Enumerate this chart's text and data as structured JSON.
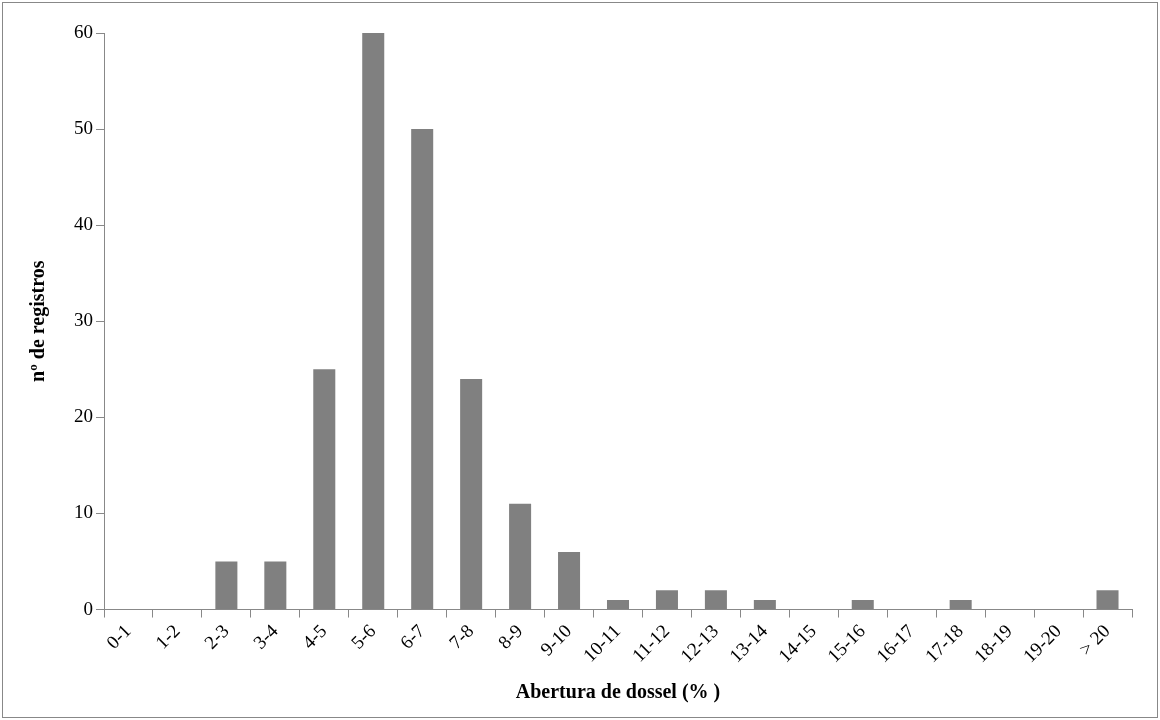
{
  "chart_data": {
    "type": "bar",
    "xlabel": "Abertura de dossel (% )",
    "ylabel": "nº de registros",
    "categories": [
      "0-1",
      "1-2",
      "2-3",
      "3-4",
      "4-5",
      "5-6",
      "6-7",
      "7-8",
      "8-9",
      "9-10",
      "10-11",
      "11-12",
      "12-13",
      "13-14",
      "14-15",
      "15-16",
      "16-17",
      "17-18",
      "18-19",
      "19-20",
      "> 20"
    ],
    "values": [
      0,
      0,
      5,
      5,
      25,
      60,
      50,
      24,
      11,
      6,
      1,
      2,
      2,
      1,
      0,
      1,
      0,
      1,
      0,
      0,
      2
    ],
    "color": "#808080",
    "ylim": [
      0,
      60
    ],
    "yticks": [
      0,
      10,
      20,
      30,
      40,
      50,
      60
    ],
    "grid": false
  }
}
